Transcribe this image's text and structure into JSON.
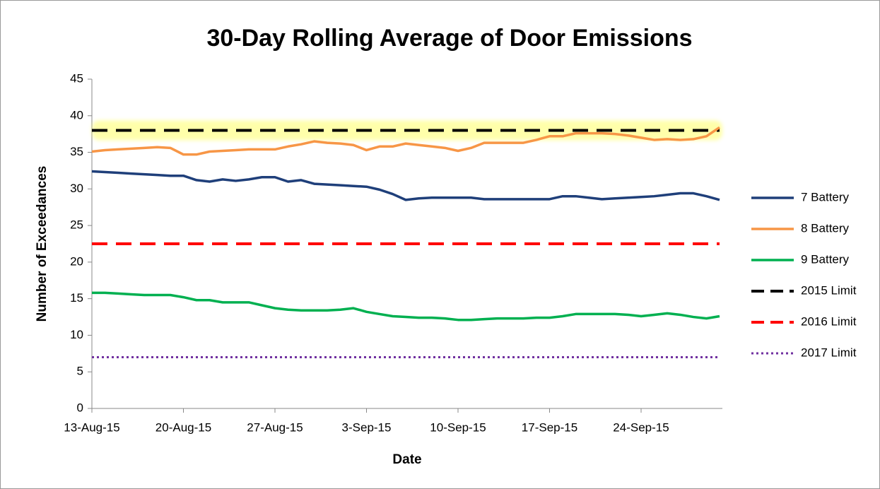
{
  "chart_data": {
    "type": "line",
    "title": "30-Day Rolling Average of Door Emissions",
    "xlabel": "Date",
    "ylabel": "Number of Exceedances",
    "x": [
      "2015-08-13",
      "2015-08-14",
      "2015-08-15",
      "2015-08-16",
      "2015-08-17",
      "2015-08-18",
      "2015-08-19",
      "2015-08-20",
      "2015-08-21",
      "2015-08-22",
      "2015-08-23",
      "2015-08-24",
      "2015-08-25",
      "2015-08-26",
      "2015-08-27",
      "2015-08-28",
      "2015-08-29",
      "2015-08-30",
      "2015-08-31",
      "2015-09-01",
      "2015-09-02",
      "2015-09-03",
      "2015-09-04",
      "2015-09-05",
      "2015-09-06",
      "2015-09-07",
      "2015-09-08",
      "2015-09-09",
      "2015-09-10",
      "2015-09-11",
      "2015-09-12",
      "2015-09-13",
      "2015-09-14",
      "2015-09-15",
      "2015-09-16",
      "2015-09-17",
      "2015-09-18",
      "2015-09-19",
      "2015-09-20",
      "2015-09-21",
      "2015-09-22",
      "2015-09-23",
      "2015-09-24",
      "2015-09-25",
      "2015-09-26",
      "2015-09-27",
      "2015-09-28",
      "2015-09-29",
      "2015-09-30"
    ],
    "series": [
      {
        "name": "7 Battery",
        "color": "#1f3f7a",
        "values": [
          32.4,
          32.3,
          32.2,
          32.1,
          32.0,
          31.9,
          31.8,
          31.8,
          31.2,
          31.0,
          31.3,
          31.1,
          31.3,
          31.6,
          31.6,
          31.0,
          31.2,
          30.7,
          30.6,
          30.5,
          30.4,
          30.3,
          29.9,
          29.3,
          28.5,
          28.7,
          28.8,
          28.8,
          28.8,
          28.8,
          28.6,
          28.6,
          28.6,
          28.6,
          28.6,
          28.6,
          29.0,
          29.0,
          28.8,
          28.6,
          28.7,
          28.8,
          28.9,
          29.0,
          29.2,
          29.4,
          29.4,
          29.0,
          28.5
        ]
      },
      {
        "name": "8 Battery",
        "color": "#f79646",
        "values": [
          35.1,
          35.3,
          35.4,
          35.5,
          35.6,
          35.7,
          35.6,
          34.7,
          34.7,
          35.1,
          35.2,
          35.3,
          35.4,
          35.4,
          35.4,
          35.8,
          36.1,
          36.5,
          36.3,
          36.2,
          36.0,
          35.3,
          35.8,
          35.8,
          36.2,
          36.0,
          35.8,
          35.6,
          35.2,
          35.6,
          36.3,
          36.3,
          36.3,
          36.3,
          36.7,
          37.2,
          37.2,
          37.6,
          37.6,
          37.6,
          37.5,
          37.3,
          37.0,
          36.7,
          36.8,
          36.7,
          36.8,
          37.2,
          38.4
        ]
      },
      {
        "name": "9 Battery",
        "color": "#00b050",
        "values": [
          15.8,
          15.8,
          15.7,
          15.6,
          15.5,
          15.5,
          15.5,
          15.2,
          14.8,
          14.8,
          14.5,
          14.5,
          14.5,
          14.1,
          13.7,
          13.5,
          13.4,
          13.4,
          13.4,
          13.5,
          13.7,
          13.2,
          12.9,
          12.6,
          12.5,
          12.4,
          12.4,
          12.3,
          12.1,
          12.1,
          12.2,
          12.3,
          12.3,
          12.3,
          12.4,
          12.4,
          12.6,
          12.9,
          12.9,
          12.9,
          12.9,
          12.8,
          12.6,
          12.8,
          13.0,
          12.8,
          12.5,
          12.3,
          12.6
        ]
      }
    ],
    "reference_lines": [
      {
        "name": "2015 Limit",
        "value": 38,
        "color": "#000000",
        "dash": "dashed",
        "highlight": "#ffff66"
      },
      {
        "name": "2016 Limit",
        "value": 22.5,
        "color": "#ff0000",
        "dash": "dashed"
      },
      {
        "name": "2017 Limit",
        "value": 7,
        "color": "#7030a0",
        "dash": "dotted"
      }
    ],
    "xlim": [
      "2015-08-13",
      "2015-09-30"
    ],
    "xticks": [
      {
        "value": "2015-08-13",
        "label": "13-Aug-15"
      },
      {
        "value": "2015-08-20",
        "label": "20-Aug-15"
      },
      {
        "value": "2015-08-27",
        "label": "27-Aug-15"
      },
      {
        "value": "2015-09-03",
        "label": "3-Sep-15"
      },
      {
        "value": "2015-09-10",
        "label": "10-Sep-15"
      },
      {
        "value": "2015-09-17",
        "label": "17-Sep-15"
      },
      {
        "value": "2015-09-24",
        "label": "24-Sep-15"
      }
    ],
    "ylim": [
      0,
      45
    ],
    "yticks": [
      0,
      5,
      10,
      15,
      20,
      25,
      30,
      35,
      40,
      45
    ],
    "grid": false,
    "legend": "right"
  }
}
